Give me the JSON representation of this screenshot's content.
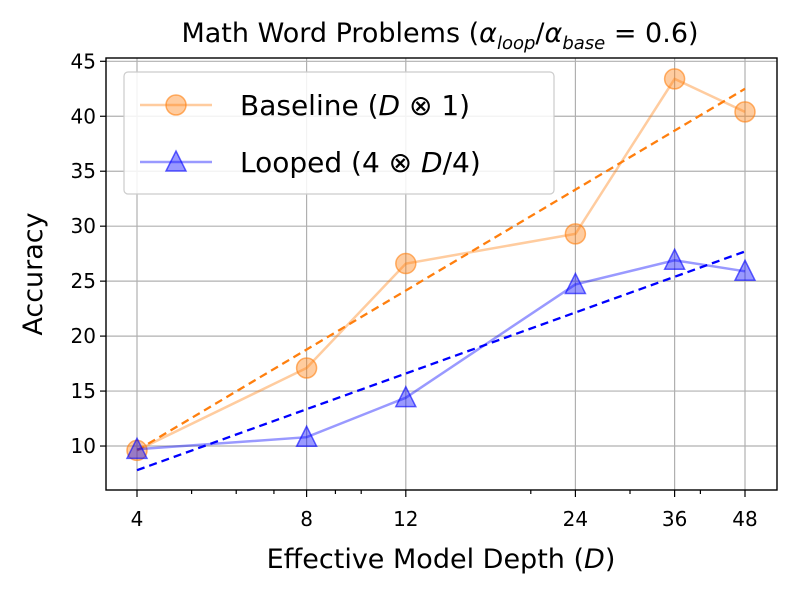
{
  "chart_data": {
    "type": "line",
    "title": "Math Word Problems (α_loop/α_base = 0.6)",
    "xlabel": "Effective Model Depth (D)",
    "ylabel": "Accuracy",
    "x_scale": "log",
    "x": [
      4,
      8,
      12,
      24,
      36,
      48
    ],
    "x_tick_labels": [
      "4",
      "8",
      "12",
      "24",
      "36",
      "48"
    ],
    "ylim": [
      6,
      45.3
    ],
    "y_ticks": [
      10,
      15,
      20,
      25,
      30,
      35,
      40,
      45
    ],
    "grid": true,
    "legend_position": "top-left",
    "series": [
      {
        "name": "Baseline (D ⊗ 1)",
        "marker": "circle",
        "color": "#ff7f0e",
        "values": [
          9.6,
          17.1,
          26.6,
          29.3,
          43.4,
          40.4
        ],
        "trend": [
          9.6,
          42.5
        ]
      },
      {
        "name": "Looped (4 ⊗ D/4)",
        "marker": "triangle",
        "color": "#0000ff",
        "values": [
          9.7,
          10.8,
          14.4,
          24.7,
          26.9,
          25.9
        ],
        "trend": [
          7.8,
          27.7
        ]
      }
    ]
  }
}
